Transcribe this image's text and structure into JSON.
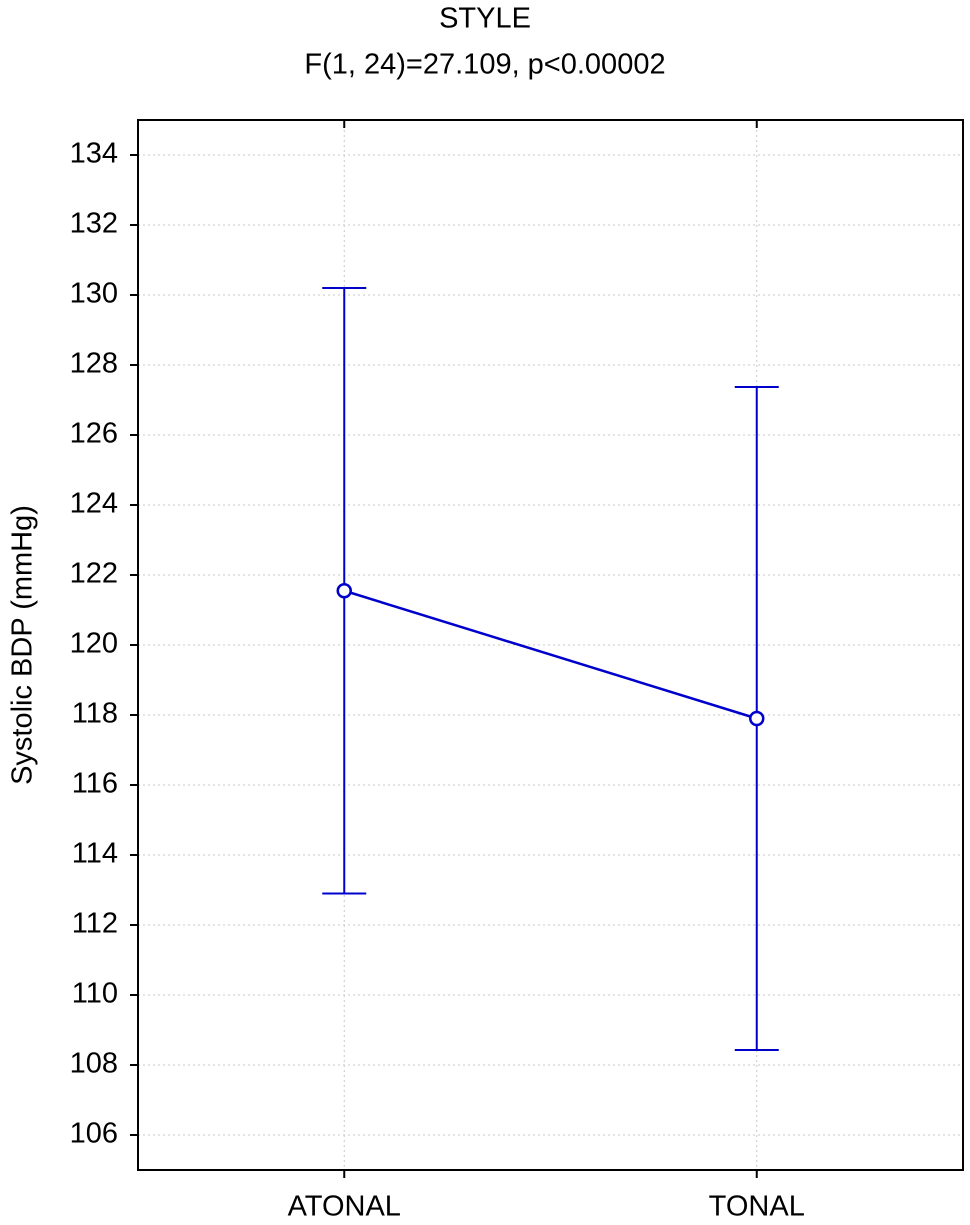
{
  "chart_data": {
    "type": "line",
    "title": "STYLE",
    "subtitle": "F(1, 24)=27.109, p<0.00002",
    "y_label": "Systolic BDP (mmHg)",
    "categories": [
      "ATONAL",
      "TONAL"
    ],
    "values": [
      121.55,
      117.9
    ],
    "errors": [
      8.65,
      9.47
    ],
    "color": "#0000cc",
    "ylim": [
      105,
      135
    ],
    "yticks": [
      106,
      108,
      110,
      112,
      114,
      116,
      118,
      120,
      122,
      124,
      126,
      128,
      130,
      132,
      134
    ],
    "grid": true
  }
}
